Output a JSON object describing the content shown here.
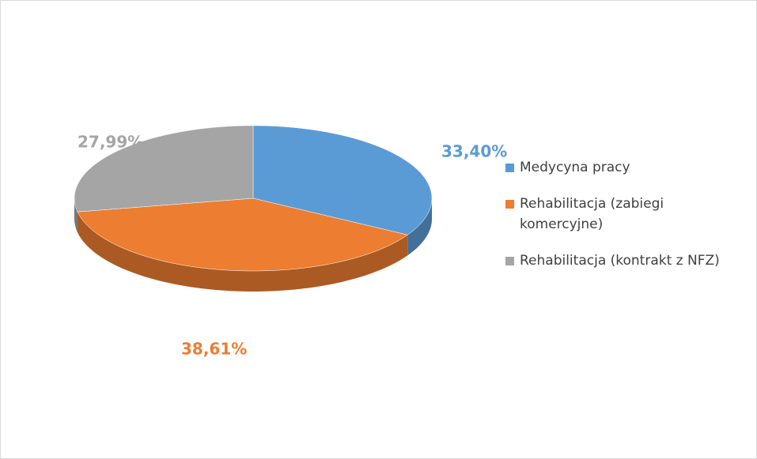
{
  "chart_data": {
    "type": "pie",
    "categories": [
      "Medycyna pracy",
      "Rehabilitacja (zabiegi komercyjne)",
      "Rehabilitacja (kontrakt z NFZ)"
    ],
    "values": [
      33.4,
      38.61,
      27.99
    ],
    "value_labels": [
      "33,40%",
      "38,61%",
      "27,99%"
    ],
    "colors": [
      "#5b9bd5",
      "#ed7d31",
      "#a5a5a5"
    ],
    "legend": "right"
  }
}
